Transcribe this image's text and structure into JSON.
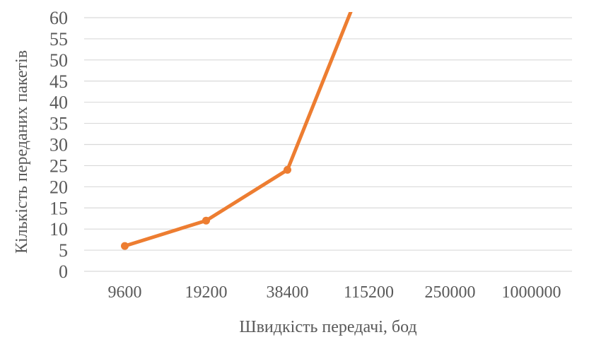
{
  "chart_data": {
    "type": "line",
    "title": "",
    "xlabel": "Швидкість передачі, бод",
    "ylabel": "Кількість переданих пакетів",
    "categories": [
      "9600",
      "19200",
      "38400",
      "115200",
      "250000",
      "1000000"
    ],
    "series": [
      {
        "name": "Кількість переданих пакетів",
        "values": [
          6,
          12,
          24,
          72,
          null,
          null
        ]
      }
    ],
    "ylim": [
      0,
      60
    ],
    "y_ticks": [
      0,
      5,
      10,
      15,
      20,
      25,
      30,
      35,
      40,
      45,
      50,
      55,
      60
    ],
    "grid": "horizontal",
    "legend": "none",
    "line_clipped_above_ymax": true,
    "colors": {
      "series": "#ED7D31",
      "gridline": "#D9D9D9",
      "axis_text": "#595959",
      "background": "#FFFFFF"
    }
  }
}
